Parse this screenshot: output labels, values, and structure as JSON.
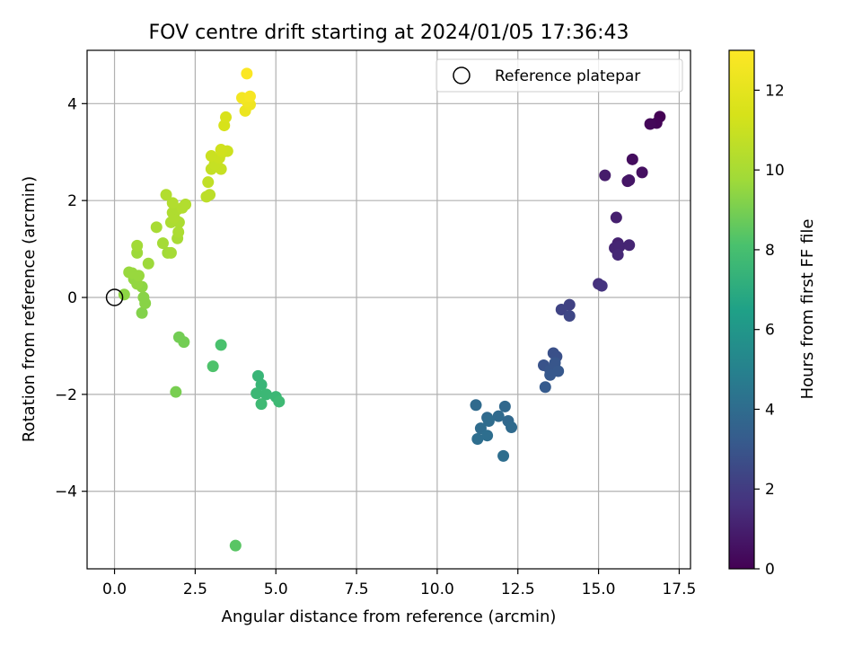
{
  "chart_data": {
    "type": "scatter",
    "title": "FOV centre drift starting at 2024/01/05 17:36:43",
    "xlabel": "Angular distance from reference (arcmin)",
    "ylabel": "Rotation from reference (arcmin)",
    "colorbar_label": "Hours from first FF file",
    "xlim": [
      -0.85,
      17.85
    ],
    "ylim": [
      -5.6,
      5.1
    ],
    "x_ticks": [
      0.0,
      2.5,
      5.0,
      7.5,
      10.0,
      12.5,
      15.0,
      17.5
    ],
    "x_tick_labels": [
      "0.0",
      "2.5",
      "5.0",
      "7.5",
      "10.0",
      "12.5",
      "15.0",
      "17.5"
    ],
    "y_ticks": [
      -4,
      -2,
      0,
      2,
      4
    ],
    "y_tick_labels": [
      "−4",
      "−2",
      "0",
      "2",
      "4"
    ],
    "colorbar_range": [
      0,
      13
    ],
    "colorbar_ticks": [
      0,
      2,
      4,
      6,
      8,
      10,
      12
    ],
    "colorbar_tick_labels": [
      "0",
      "2",
      "4",
      "6",
      "8",
      "10",
      "12"
    ],
    "colormap": "viridis",
    "grid": true,
    "legend": {
      "position": "top-right",
      "label": "Reference platepar"
    },
    "reference_point": {
      "x": 0,
      "y": 0
    },
    "points": [
      {
        "x": 16.9,
        "y": 3.73,
        "c": 0.0
      },
      {
        "x": 16.8,
        "y": 3.6,
        "c": 0.1
      },
      {
        "x": 16.6,
        "y": 3.58,
        "c": 0.2
      },
      {
        "x": 16.05,
        "y": 2.85,
        "c": 0.4
      },
      {
        "x": 16.35,
        "y": 2.58,
        "c": 0.5
      },
      {
        "x": 15.9,
        "y": 2.4,
        "c": 0.6
      },
      {
        "x": 15.95,
        "y": 2.42,
        "c": 0.7
      },
      {
        "x": 15.2,
        "y": 2.52,
        "c": 0.9
      },
      {
        "x": 15.55,
        "y": 1.65,
        "c": 1.0
      },
      {
        "x": 15.6,
        "y": 1.12,
        "c": 1.1
      },
      {
        "x": 15.5,
        "y": 1.02,
        "c": 1.2
      },
      {
        "x": 15.65,
        "y": 1.05,
        "c": 1.2
      },
      {
        "x": 15.95,
        "y": 1.08,
        "c": 1.2
      },
      {
        "x": 15.6,
        "y": 0.88,
        "c": 1.3
      },
      {
        "x": 15.0,
        "y": 0.28,
        "c": 1.6
      },
      {
        "x": 15.1,
        "y": 0.24,
        "c": 1.7
      },
      {
        "x": 14.1,
        "y": -0.15,
        "c": 2.2
      },
      {
        "x": 13.85,
        "y": -0.25,
        "c": 2.3
      },
      {
        "x": 14.1,
        "y": -0.38,
        "c": 2.4
      },
      {
        "x": 13.6,
        "y": -1.15,
        "c": 2.8
      },
      {
        "x": 13.7,
        "y": -1.22,
        "c": 2.8
      },
      {
        "x": 13.3,
        "y": -1.4,
        "c": 2.9
      },
      {
        "x": 13.65,
        "y": -1.35,
        "c": 3.0
      },
      {
        "x": 13.5,
        "y": -1.5,
        "c": 3.0
      },
      {
        "x": 13.75,
        "y": -1.52,
        "c": 3.1
      },
      {
        "x": 13.5,
        "y": -1.6,
        "c": 3.1
      },
      {
        "x": 13.35,
        "y": -1.85,
        "c": 3.2
      },
      {
        "x": 11.2,
        "y": -2.22,
        "c": 3.9
      },
      {
        "x": 12.1,
        "y": -2.25,
        "c": 3.8
      },
      {
        "x": 11.55,
        "y": -2.48,
        "c": 3.9
      },
      {
        "x": 11.9,
        "y": -2.45,
        "c": 3.9
      },
      {
        "x": 12.2,
        "y": -2.55,
        "c": 3.8
      },
      {
        "x": 11.6,
        "y": -2.55,
        "c": 4.0
      },
      {
        "x": 11.35,
        "y": -2.7,
        "c": 4.0
      },
      {
        "x": 12.3,
        "y": -2.68,
        "c": 3.9
      },
      {
        "x": 11.55,
        "y": -2.85,
        "c": 4.1
      },
      {
        "x": 11.25,
        "y": -2.92,
        "c": 4.1
      },
      {
        "x": 12.05,
        "y": -3.27,
        "c": 4.1
      },
      {
        "x": 4.45,
        "y": -1.62,
        "c": 7.5
      },
      {
        "x": 4.55,
        "y": -1.8,
        "c": 7.5
      },
      {
        "x": 4.4,
        "y": -1.98,
        "c": 7.6
      },
      {
        "x": 4.7,
        "y": -2.0,
        "c": 7.6
      },
      {
        "x": 5.0,
        "y": -2.05,
        "c": 7.6
      },
      {
        "x": 5.1,
        "y": -2.15,
        "c": 7.7
      },
      {
        "x": 4.55,
        "y": -2.2,
        "c": 7.7
      },
      {
        "x": 3.3,
        "y": -0.98,
        "c": 8.1
      },
      {
        "x": 3.05,
        "y": -1.42,
        "c": 8.2
      },
      {
        "x": 3.75,
        "y": -5.12,
        "c": 8.4
      },
      {
        "x": 2.0,
        "y": -0.82,
        "c": 8.9
      },
      {
        "x": 2.15,
        "y": -0.92,
        "c": 8.9
      },
      {
        "x": 1.9,
        "y": -1.95,
        "c": 9.0
      },
      {
        "x": 0.85,
        "y": -0.32,
        "c": 9.2
      },
      {
        "x": 0.95,
        "y": -0.12,
        "c": 9.3
      },
      {
        "x": 0.9,
        "y": 0.0,
        "c": 9.3
      },
      {
        "x": 0.3,
        "y": 0.06,
        "c": 9.4
      },
      {
        "x": 0.85,
        "y": 0.22,
        "c": 9.4
      },
      {
        "x": 0.7,
        "y": 0.28,
        "c": 9.5
      },
      {
        "x": 0.6,
        "y": 0.38,
        "c": 9.5
      },
      {
        "x": 0.45,
        "y": 0.52,
        "c": 9.6
      },
      {
        "x": 0.55,
        "y": 0.5,
        "c": 9.6
      },
      {
        "x": 0.75,
        "y": 0.45,
        "c": 9.6
      },
      {
        "x": 1.05,
        "y": 0.7,
        "c": 9.7
      },
      {
        "x": 0.7,
        "y": 0.92,
        "c": 9.7
      },
      {
        "x": 0.7,
        "y": 1.07,
        "c": 9.8
      },
      {
        "x": 1.5,
        "y": 1.12,
        "c": 9.9
      },
      {
        "x": 1.65,
        "y": 0.92,
        "c": 9.8
      },
      {
        "x": 1.75,
        "y": 0.92,
        "c": 9.9
      },
      {
        "x": 1.3,
        "y": 1.45,
        "c": 10.0
      },
      {
        "x": 1.95,
        "y": 1.22,
        "c": 10.0
      },
      {
        "x": 1.98,
        "y": 1.35,
        "c": 10.1
      },
      {
        "x": 2.0,
        "y": 1.55,
        "c": 10.1
      },
      {
        "x": 1.75,
        "y": 1.55,
        "c": 10.1
      },
      {
        "x": 1.85,
        "y": 1.65,
        "c": 10.2
      },
      {
        "x": 1.8,
        "y": 1.75,
        "c": 10.2
      },
      {
        "x": 1.95,
        "y": 1.82,
        "c": 10.2
      },
      {
        "x": 2.1,
        "y": 1.85,
        "c": 10.3
      },
      {
        "x": 1.8,
        "y": 1.95,
        "c": 10.3
      },
      {
        "x": 2.2,
        "y": 1.92,
        "c": 10.3
      },
      {
        "x": 1.6,
        "y": 2.12,
        "c": 10.3
      },
      {
        "x": 2.85,
        "y": 2.08,
        "c": 10.6
      },
      {
        "x": 2.95,
        "y": 2.12,
        "c": 10.6
      },
      {
        "x": 2.9,
        "y": 2.38,
        "c": 10.7
      },
      {
        "x": 3.0,
        "y": 2.65,
        "c": 10.8
      },
      {
        "x": 3.2,
        "y": 2.7,
        "c": 10.8
      },
      {
        "x": 3.3,
        "y": 2.65,
        "c": 10.9
      },
      {
        "x": 3.1,
        "y": 2.75,
        "c": 10.9
      },
      {
        "x": 3.25,
        "y": 2.88,
        "c": 11.0
      },
      {
        "x": 3.0,
        "y": 2.92,
        "c": 11.0
      },
      {
        "x": 3.35,
        "y": 3.0,
        "c": 11.1
      },
      {
        "x": 3.5,
        "y": 3.02,
        "c": 11.1
      },
      {
        "x": 3.3,
        "y": 3.05,
        "c": 11.2
      },
      {
        "x": 3.4,
        "y": 3.55,
        "c": 11.4
      },
      {
        "x": 3.45,
        "y": 3.72,
        "c": 11.5
      },
      {
        "x": 4.05,
        "y": 3.85,
        "c": 12.3
      },
      {
        "x": 4.2,
        "y": 3.98,
        "c": 12.4
      },
      {
        "x": 4.1,
        "y": 4.05,
        "c": 12.5
      },
      {
        "x": 3.95,
        "y": 4.12,
        "c": 12.6
      },
      {
        "x": 4.2,
        "y": 4.15,
        "c": 12.7
      },
      {
        "x": 4.1,
        "y": 4.62,
        "c": 12.9
      }
    ]
  }
}
